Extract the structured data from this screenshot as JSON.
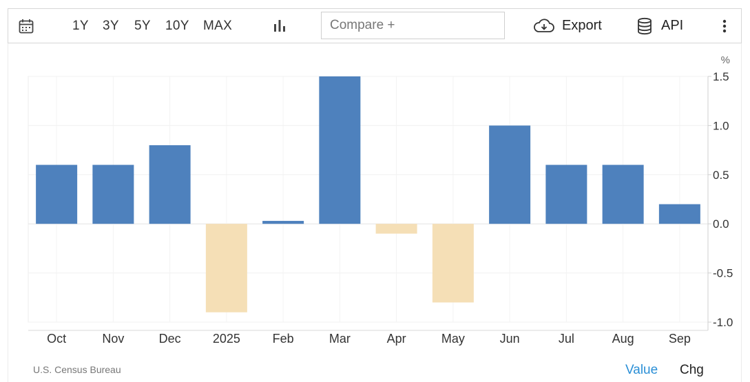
{
  "toolbar": {
    "calendar_icon": "calendar-icon",
    "ranges": [
      "1Y",
      "3Y",
      "5Y",
      "10Y",
      "MAX"
    ],
    "chart_type_icon": "bar-chart-icon",
    "compare_placeholder": "Compare +",
    "export_label": "Export",
    "export_icon": "cloud-download-icon",
    "api_label": "API",
    "api_icon": "database-icon",
    "more_icon": "more-vertical-icon"
  },
  "chart_data": {
    "type": "bar",
    "unit": "%",
    "categories": [
      "Oct",
      "Nov",
      "Dec",
      "2025",
      "Feb",
      "Mar",
      "Apr",
      "May",
      "Jun",
      "Jul",
      "Aug",
      "Sep"
    ],
    "values": [
      0.6,
      0.6,
      0.8,
      -0.9,
      0.03,
      1.5,
      -0.1,
      -0.8,
      1.0,
      0.6,
      0.6,
      0.2
    ],
    "yticks": [
      "1.5",
      "1.0",
      "0.5",
      "0.0",
      "-0.5",
      "-1.0"
    ],
    "ylim": [
      -1.0,
      1.5
    ],
    "positive_color": "#4e81bd",
    "negative_color": "#f5dfb6",
    "grid": true
  },
  "footer": {
    "source": "U.S. Census Bureau",
    "value_tab": "Value",
    "chg_tab": "Chg",
    "active_color": "#2b8fd6"
  }
}
